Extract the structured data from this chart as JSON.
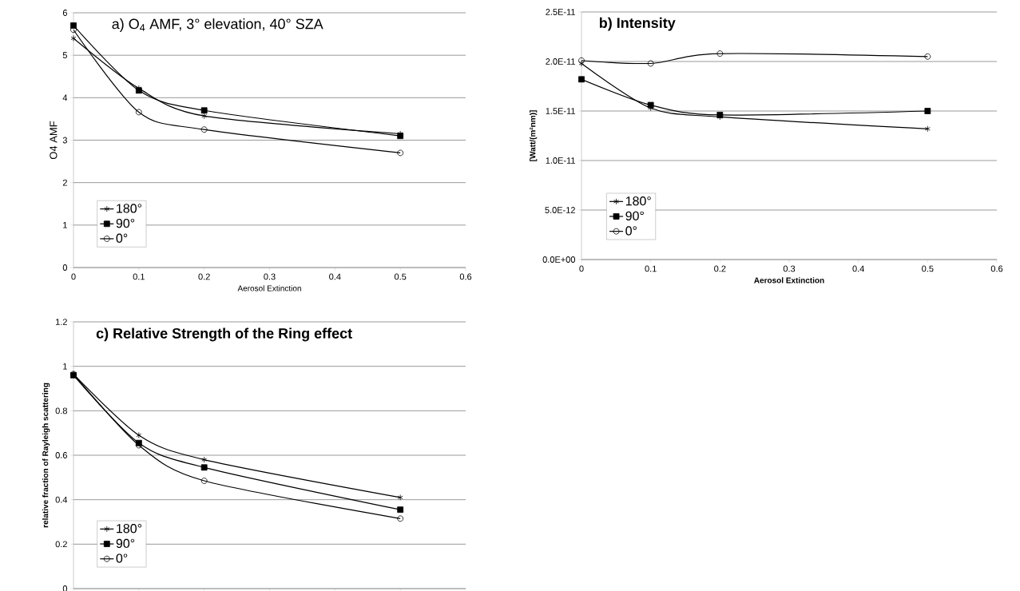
{
  "chart_data": [
    {
      "type": "line",
      "title": "a)  O$_{4}$ AMF, 3° elevation, 40° SZA",
      "xlabel": "Aerosol Extinction",
      "ylabel": "O4 AMF",
      "x": [
        0,
        0.1,
        0.2,
        0.5
      ],
      "xlim": [
        0,
        0.6
      ],
      "xticks": [
        0,
        0.1,
        0.2,
        0.3,
        0.4,
        0.5,
        0.6
      ],
      "ylim": [
        0,
        6
      ],
      "yticks": [
        0,
        1,
        2,
        3,
        4,
        5,
        6
      ],
      "grid": "y",
      "legend": "bottom left",
      "line_style": "solid",
      "series": [
        {
          "name": "180°",
          "color": "#000000",
          "marker": "cross",
          "values": [
            5.4,
            4.22,
            3.57,
            3.15
          ]
        },
        {
          "name": "90°",
          "color": "#000000",
          "marker": "square",
          "values": [
            5.7,
            4.17,
            3.7,
            3.1
          ]
        },
        {
          "name": "0°",
          "color": "#000000",
          "marker": "circle",
          "values": [
            5.6,
            3.66,
            3.25,
            2.7
          ]
        }
      ]
    },
    {
      "type": "line",
      "title": "b)  Intensity",
      "xlabel": "Aerosol Extinction",
      "ylabel": "[Watt/(m²nm)]",
      "x": [
        0,
        0.1,
        0.2,
        0.5
      ],
      "xlim": [
        0,
        0.6
      ],
      "xticks": [
        0,
        0.1,
        0.2,
        0.3,
        0.4,
        0.5,
        0.6
      ],
      "ylim": [
        0,
        2.5e-11
      ],
      "yticks": [
        {
          "value": 0,
          "label": "0.0E+00"
        },
        {
          "value": 5e-12,
          "label": "5.0E-12"
        },
        {
          "value": 1e-11,
          "label": "1.0E-11"
        },
        {
          "value": 1.5e-11,
          "label": "1.5E-11"
        },
        {
          "value": 2e-11,
          "label": "2.0E-11"
        },
        {
          "value": 2.5e-11,
          "label": "2.5E-11"
        }
      ],
      "grid": "y",
      "legend": "bottom left",
      "line_style": "solid",
      "series": [
        {
          "name": "180°",
          "color": "#000000",
          "marker": "cross",
          "values": [
            1.98e-11,
            1.53e-11,
            1.44e-11,
            1.32e-11
          ]
        },
        {
          "name": "90°",
          "color": "#000000",
          "marker": "square",
          "values": [
            1.82e-11,
            1.56e-11,
            1.46e-11,
            1.5e-11
          ]
        },
        {
          "name": "0°",
          "color": "#000000",
          "marker": "circle",
          "values": [
            2.01e-11,
            1.98e-11,
            2.08e-11,
            2.05e-11
          ]
        }
      ]
    },
    {
      "type": "line",
      "title": "c) Relative Strength of the Ring effect",
      "ylabel": "relative fraction of Rayleigh scattering",
      "x": [
        0,
        0.1,
        0.2,
        0.5
      ],
      "xlim": [
        0,
        0.6
      ],
      "xticks": [
        {
          "value": 0,
          "label": null
        },
        {
          "value": 0.1,
          "label": null
        },
        {
          "value": 0.2,
          "label": null
        },
        {
          "value": 0.3,
          "label": null
        },
        {
          "value": 0.4,
          "label": null
        },
        {
          "value": 0.5,
          "label": null
        },
        {
          "value": 0.6,
          "label": null
        }
      ],
      "ylim": [
        0,
        1.2
      ],
      "yticks": [
        0,
        0.2,
        0.4,
        0.6,
        0.8,
        1,
        1.2
      ],
      "tick_labels": "y",
      "grid": "y",
      "legend": "bottom left",
      "line_style": "solid",
      "series": [
        {
          "name": "180°",
          "color": "#000000",
          "marker": "cross",
          "values": [
            0.965,
            0.69,
            0.58,
            0.41
          ]
        },
        {
          "name": "90°",
          "color": "#000000",
          "marker": "square",
          "values": [
            0.96,
            0.655,
            0.545,
            0.355
          ]
        },
        {
          "name": "0°",
          "color": "#000000",
          "marker": "circle",
          "values": [
            0.965,
            0.645,
            0.485,
            0.315
          ]
        }
      ]
    }
  ]
}
